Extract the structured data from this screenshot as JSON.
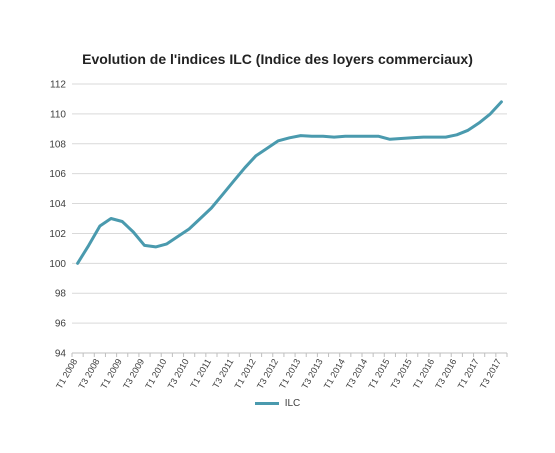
{
  "chart_data": {
    "type": "line",
    "title": "Evolution de l'indices ILC (Indice des loyers commerciaux)",
    "xlabel": "",
    "ylabel": "",
    "ylim": [
      94,
      112
    ],
    "yticks": [
      94,
      96,
      98,
      100,
      102,
      104,
      106,
      108,
      110,
      112
    ],
    "grid": true,
    "legend_position": "bottom",
    "color": "#4a9aae",
    "x_tick_labels": [
      "T1 2008",
      "T3 2008",
      "T1 2009",
      "T3 2009",
      "T1 2010",
      "T3 2010",
      "T1 2011",
      "T3 2011",
      "T1 2012",
      "T3 2012",
      "T1 2013",
      "T3 2013",
      "T1 2014",
      "T3 2014",
      "T1 2015",
      "T3 2015",
      "T1 2016",
      "T3 2016",
      "T1 2017",
      "T3 2017"
    ],
    "x": [
      "T1 2008",
      "T2 2008",
      "T3 2008",
      "T4 2008",
      "T1 2009",
      "T2 2009",
      "T3 2009",
      "T4 2009",
      "T1 2010",
      "T2 2010",
      "T3 2010",
      "T4 2010",
      "T1 2011",
      "T2 2011",
      "T3 2011",
      "T4 2011",
      "T1 2012",
      "T2 2012",
      "T3 2012",
      "T4 2012",
      "T1 2013",
      "T2 2013",
      "T3 2013",
      "T4 2013",
      "T1 2014",
      "T2 2014",
      "T3 2014",
      "T4 2014",
      "T1 2015",
      "T2 2015",
      "T3 2015",
      "T4 2015",
      "T1 2016",
      "T2 2016",
      "T3 2016",
      "T4 2016",
      "T1 2017",
      "T2 2017",
      "T3 2017"
    ],
    "series": [
      {
        "name": "ILC",
        "values": [
          100.0,
          101.2,
          102.5,
          103.0,
          102.8,
          102.1,
          101.2,
          101.1,
          101.3,
          101.8,
          102.3,
          103.0,
          103.7,
          104.6,
          105.5,
          106.4,
          107.2,
          107.7,
          108.2,
          108.4,
          108.55,
          108.5,
          108.5,
          108.45,
          108.5,
          108.5,
          108.5,
          108.5,
          108.3,
          108.35,
          108.4,
          108.45,
          108.45,
          108.45,
          108.6,
          108.9,
          109.4,
          110.0,
          110.8
        ]
      }
    ]
  }
}
